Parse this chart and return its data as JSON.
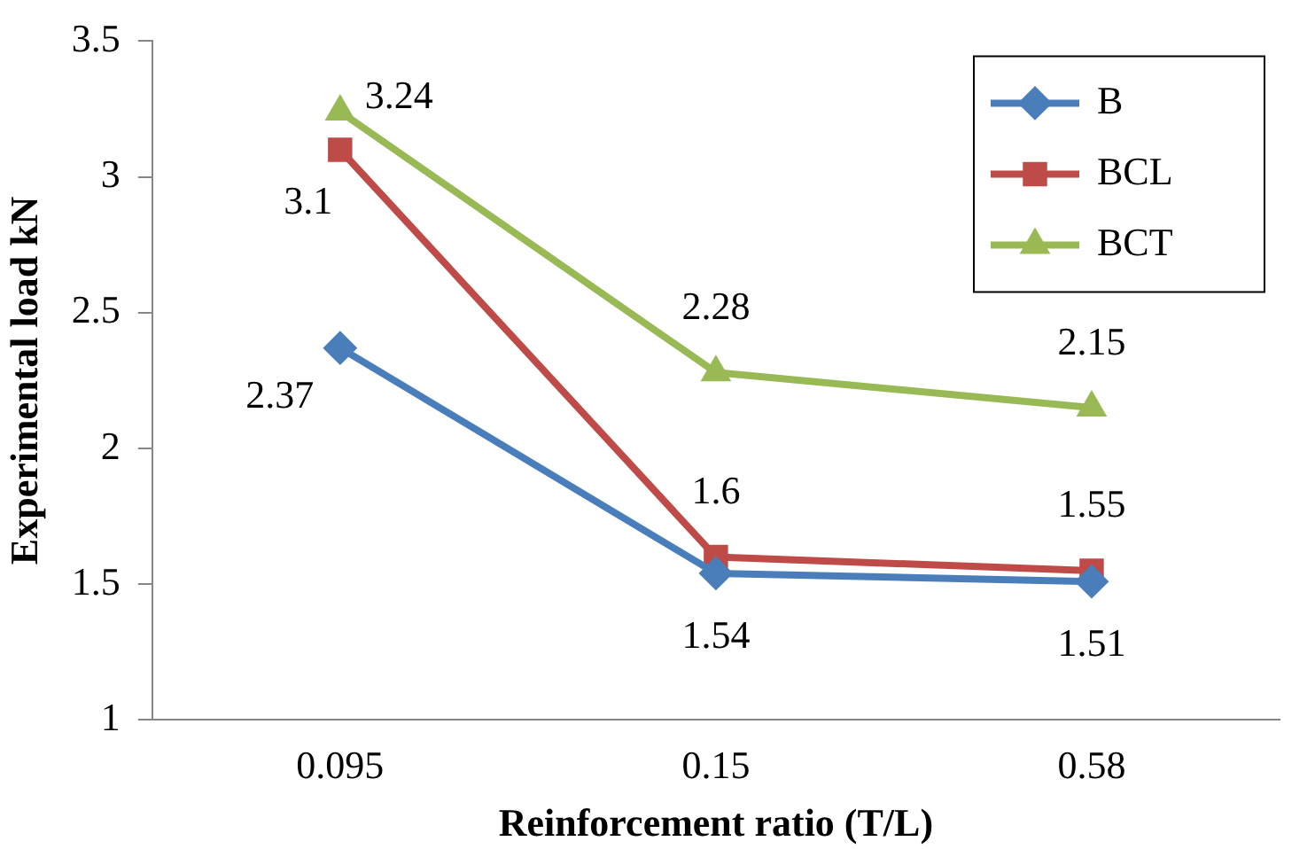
{
  "chart_data": {
    "type": "line",
    "xlabel": "Reinforcement ratio (T/L)",
    "ylabel": "Experimental load kN",
    "categories": [
      "0.095",
      "0.15",
      "0.58"
    ],
    "series": [
      {
        "name": "B",
        "color": "#4a7ebb",
        "marker": "diamond",
        "values": [
          2.37,
          1.54,
          1.51
        ]
      },
      {
        "name": "BCL",
        "color": "#be4b48",
        "marker": "square",
        "values": [
          3.1,
          1.6,
          1.55
        ]
      },
      {
        "name": "BCT",
        "color": "#98b954",
        "marker": "triangle",
        "values": [
          3.24,
          2.28,
          2.15
        ]
      }
    ],
    "ylim": [
      1,
      3.5
    ],
    "yticks": [
      1,
      1.5,
      2,
      2.5,
      3,
      3.5
    ],
    "grid": false,
    "legend": "top right",
    "data_labels": true,
    "line_style": "solid"
  }
}
